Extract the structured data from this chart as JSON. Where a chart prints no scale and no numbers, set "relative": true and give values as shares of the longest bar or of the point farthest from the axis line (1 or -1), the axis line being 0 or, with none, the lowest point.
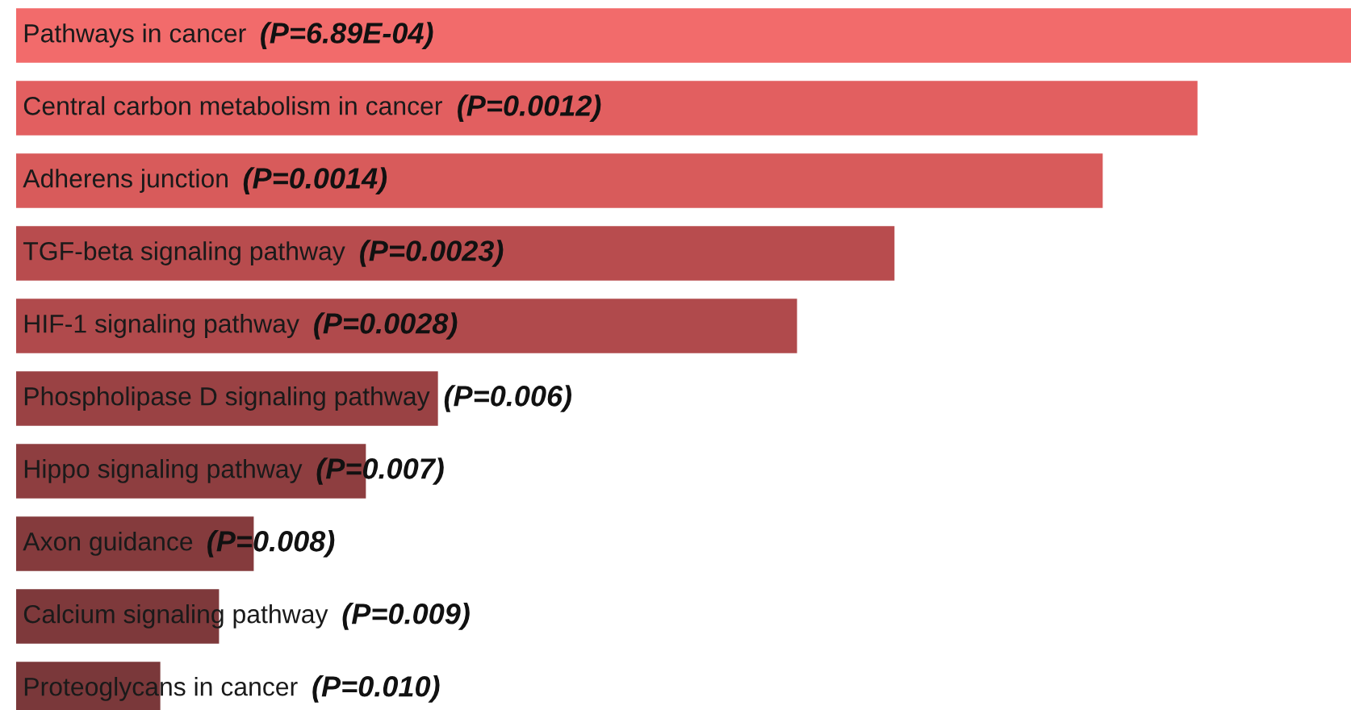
{
  "chart_data": {
    "type": "bar",
    "orientation": "horizontal",
    "relative": true,
    "categories": [
      "Pathways in cancer",
      "Central carbon metabolism in cancer",
      "Adherens junction",
      "TGF-beta signaling pathway",
      "HIF-1 signaling pathway",
      "Phospholipase D signaling pathway",
      "Hippo signaling pathway",
      "Axon guidance",
      "Calcium signaling pathway",
      "Proteoglycans in cancer"
    ],
    "values": [
      1,
      0.885,
      0.814,
      0.658,
      0.585,
      0.316,
      0.262,
      0.178,
      0.152,
      0.108
    ],
    "colors": [
      "#f26b6b",
      "#e25f60",
      "#d85b5b",
      "#b84c4e",
      "#b04a4c",
      "#9a4244",
      "#8e3e40",
      "#853b3d",
      "#7e393b",
      "#7a383a"
    ],
    "annotations": [
      "(P=6.89E-04)",
      "(P=0.0012)",
      "(P=0.0014)",
      "(P=0.0023)",
      "(P=0.0028)",
      "(P=0.006)",
      "(P=0.007)",
      "(P=0.008)",
      "(P=0.009)",
      "(P=0.010)"
    ]
  }
}
